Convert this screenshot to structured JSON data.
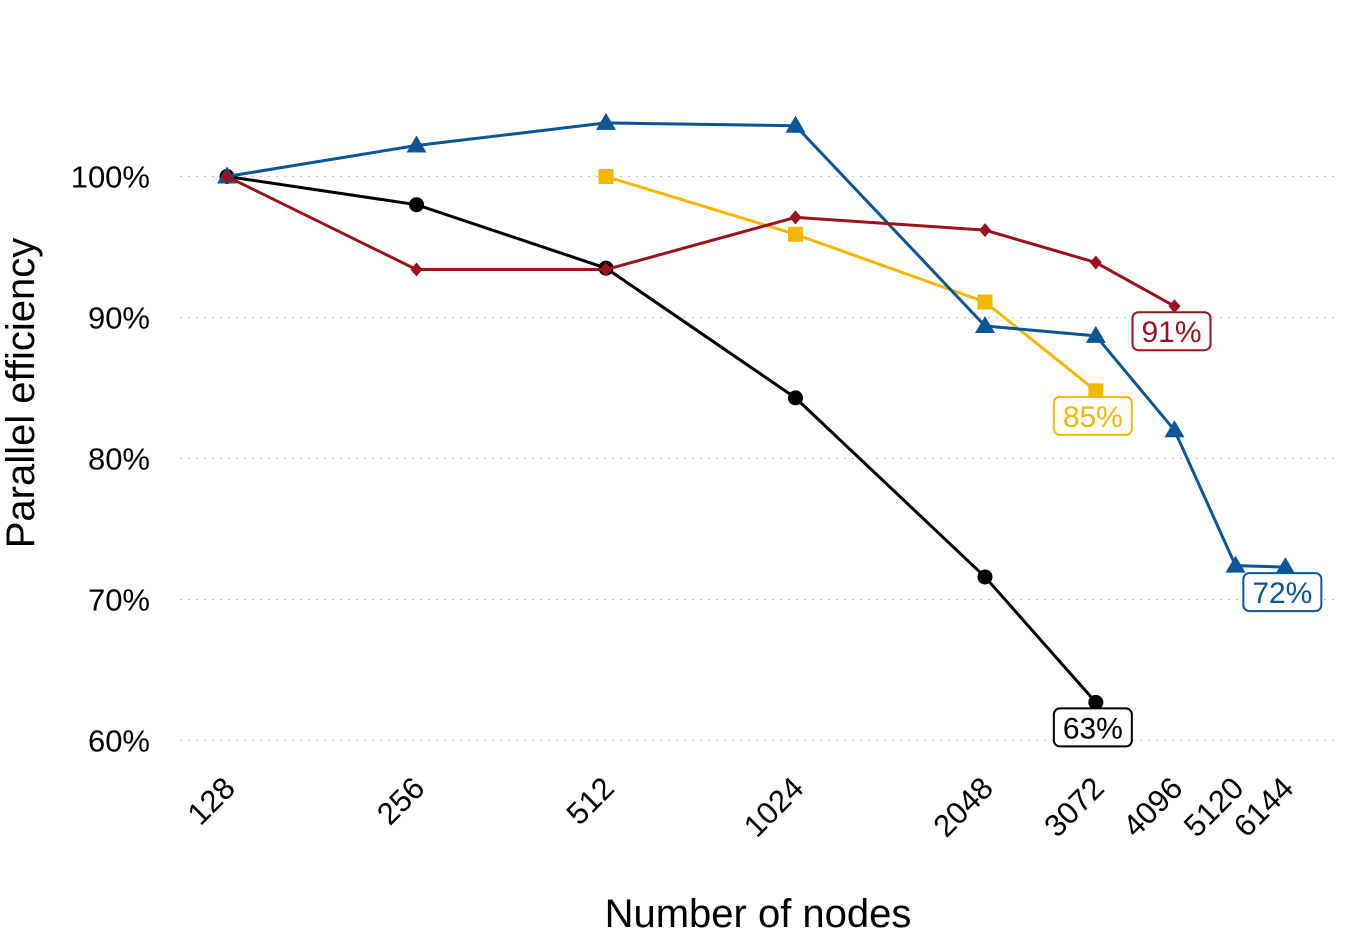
{
  "chart_data": {
    "type": "line",
    "xlabel": "Number of nodes",
    "ylabel": "Parallel efficiency",
    "x_scale": "log",
    "x_ticks": [
      128,
      256,
      512,
      1024,
      2048,
      3072,
      4096,
      5120,
      6144
    ],
    "x_tick_labels": [
      "128",
      "256",
      "512",
      "1024",
      "2048",
      "3072",
      "4096",
      "5120",
      "6144"
    ],
    "y_ticks": [
      60,
      70,
      80,
      90,
      100
    ],
    "y_tick_labels": [
      "60%",
      "70%",
      "80%",
      "90%",
      "100%"
    ],
    "ylim": [
      57.5,
      112
    ],
    "grid": "horizontal dotted",
    "legend": "none",
    "series": [
      {
        "color": "#000000",
        "marker": "circle",
        "x": [
          128,
          256,
          512,
          1024,
          2048,
          3072
        ],
        "values": [
          100,
          98,
          93.5,
          84.3,
          71.6,
          62.7
        ],
        "end_label": "63%"
      },
      {
        "color": "#F5B700",
        "marker": "square",
        "x": [
          512,
          1024,
          2048,
          3072
        ],
        "values": [
          100,
          95.9,
          91.1,
          84.8
        ],
        "end_label": "85%"
      },
      {
        "color": "#0B5796",
        "marker": "triangle",
        "x": [
          128,
          256,
          512,
          1024,
          2048,
          3072,
          4096,
          5120,
          6144
        ],
        "values": [
          100,
          102.2,
          103.8,
          103.6,
          89.4,
          88.7,
          82,
          72.4,
          72.3
        ],
        "end_label": "72%"
      },
      {
        "color": "#9B111E",
        "marker": "diamond",
        "x": [
          128,
          256,
          512,
          1024,
          2048,
          3072,
          4096
        ],
        "values": [
          100,
          93.4,
          93.4,
          97.1,
          96.2,
          93.9,
          90.8
        ],
        "end_label": "91%"
      }
    ]
  }
}
